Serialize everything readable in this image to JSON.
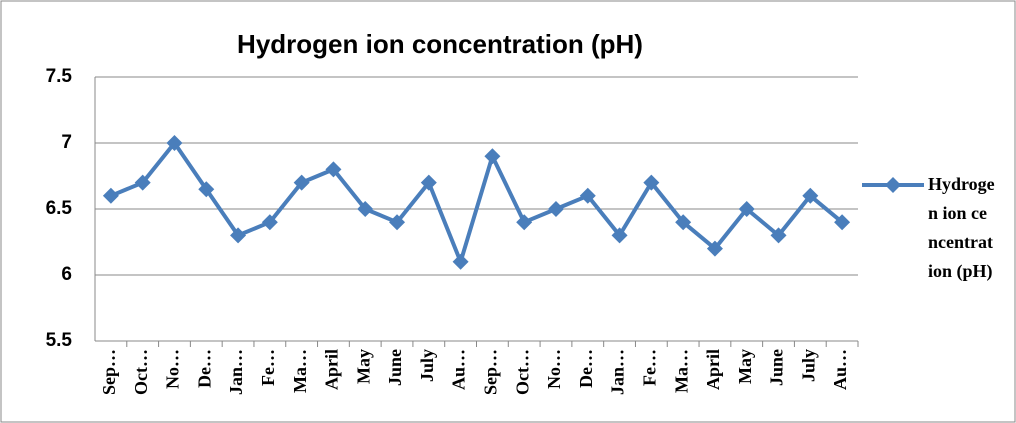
{
  "chart_data": {
    "type": "line",
    "title": "Hydrogen ion concentration (pH)",
    "categories": [
      "Sep…",
      "Oct…",
      "No…",
      "De…",
      "Jan…",
      "Fe…",
      "Ma…",
      "April",
      "May",
      "June",
      "July",
      "Au…",
      "Sep…",
      "Oct…",
      "No…",
      "De…",
      "Jan…",
      "Fe…",
      "Ma…",
      "April",
      "May",
      "June",
      "July",
      "Au…"
    ],
    "series": [
      {
        "name": "Hydrogen ion cencentration (pH)",
        "color": "#4a7ebb",
        "values": [
          6.6,
          6.7,
          7.0,
          6.65,
          6.3,
          6.4,
          6.7,
          6.8,
          6.5,
          6.4,
          6.7,
          6.1,
          6.9,
          6.4,
          6.5,
          6.6,
          6.3,
          6.7,
          6.4,
          6.2,
          6.5,
          6.3,
          6.6,
          6.4
        ]
      }
    ],
    "ylim": [
      5.5,
      7.5
    ],
    "yticks": [
      5.5,
      6,
      6.5,
      7,
      7.5
    ],
    "grid": true,
    "legend": "right"
  }
}
